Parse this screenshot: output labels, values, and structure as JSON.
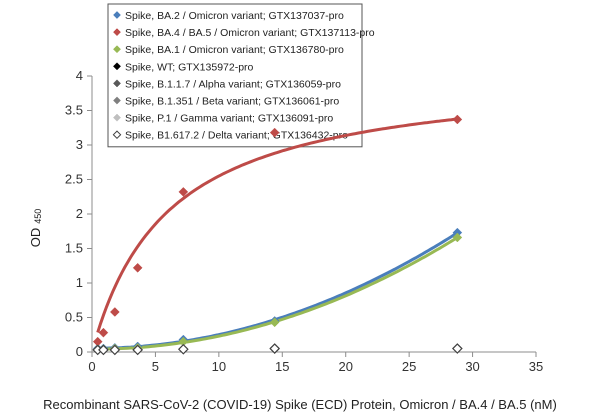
{
  "chart_data": {
    "type": "scatter",
    "title": "",
    "xlabel": "Recombinant SARS-CoV-2 (COVID-19) Spike (ECD) Protein, Omicron / BA.4 / BA.5 (nM)",
    "ylabel": "OD",
    "ylabel_subscript": "450",
    "xlim": [
      0,
      35
    ],
    "ylim": [
      0,
      4
    ],
    "x_ticks": [
      0,
      5,
      10,
      15,
      20,
      25,
      30,
      35
    ],
    "y_ticks": [
      0,
      0.5,
      1,
      1.5,
      2,
      2.5,
      3,
      3.5,
      4
    ],
    "x_tick_labels": [
      "0",
      "5",
      "10",
      "15",
      "20",
      "25",
      "30",
      "35"
    ],
    "y_tick_labels": [
      "0",
      "0.5",
      "1",
      "1.5",
      "2",
      "2.5",
      "3",
      "3.5",
      "4"
    ],
    "grid": false,
    "legend_position": "top",
    "series": [
      {
        "name": "Spike, BA.2 / Omicron variant; GTX137037-pro",
        "color": "#4a7ebb",
        "marker": "diamond-filled",
        "trendline": "curve",
        "x": [
          0.45,
          0.9,
          1.8,
          3.6,
          7.2,
          14.4,
          28.8
        ],
        "y": [
          0.05,
          0.05,
          0.06,
          0.08,
          0.18,
          0.45,
          1.73
        ]
      },
      {
        "name": "Spike, BA.4 / BA.5 / Omicron variant; GTX137113-pro",
        "color": "#be4b48",
        "marker": "diamond-filled",
        "trendline": "saturation",
        "x": [
          0.45,
          0.9,
          1.8,
          3.6,
          7.2,
          14.4,
          28.8
        ],
        "y": [
          0.15,
          0.28,
          0.58,
          1.22,
          2.32,
          3.18,
          3.37
        ]
      },
      {
        "name": "Spike, BA.1 / Omicron variant; GTX136780-pro",
        "color": "#98b954",
        "marker": "diamond-filled",
        "trendline": "curve",
        "x": [
          0.45,
          0.9,
          1.8,
          3.6,
          7.2,
          14.4,
          28.8
        ],
        "y": [
          0.04,
          0.04,
          0.05,
          0.06,
          0.15,
          0.43,
          1.66
        ]
      },
      {
        "name": "Spike, WT; GTX135972-pro",
        "color": "#000000",
        "marker": "diamond-filled",
        "trendline": "none",
        "x": [
          0.45,
          0.9,
          1.8,
          3.6,
          7.2,
          14.4,
          28.8
        ],
        "y": [
          0.03,
          0.03,
          0.03,
          0.03,
          0.04,
          0.05,
          0.05
        ]
      },
      {
        "name": "Spike, B.1.1.7 / Alpha variant; GTX136059-pro",
        "color": "#595959",
        "marker": "diamond-filled",
        "trendline": "none",
        "x": [
          0.45,
          0.9,
          1.8,
          3.6,
          7.2,
          14.4,
          28.8
        ],
        "y": [
          0.03,
          0.03,
          0.03,
          0.03,
          0.04,
          0.04,
          0.05
        ]
      },
      {
        "name": "Spike, B.1.351 / Beta variant; GTX136061-pro",
        "color": "#7f7f7f",
        "marker": "diamond-filled",
        "trendline": "none",
        "x": [
          0.45,
          0.9,
          1.8,
          3.6,
          7.2,
          14.4,
          28.8
        ],
        "y": [
          0.03,
          0.03,
          0.03,
          0.04,
          0.04,
          0.05,
          0.05
        ]
      },
      {
        "name": "Spike, P.1 / Gamma variant; GTX136091-pro",
        "color": "#bfbfbf",
        "marker": "diamond-filled",
        "trendline": "none",
        "x": [
          0.45,
          0.9,
          1.8,
          3.6,
          7.2,
          14.4,
          28.8
        ],
        "y": [
          0.03,
          0.03,
          0.04,
          0.04,
          0.05,
          0.06,
          0.06
        ]
      },
      {
        "name": "Spike, B1.617.2 / Delta variant; GTX136432-pro",
        "color": "#404040",
        "marker": "diamond-open",
        "trendline": "none",
        "x": [
          0.45,
          0.9,
          1.8,
          3.6,
          7.2,
          14.4,
          28.8
        ],
        "y": [
          0.03,
          0.03,
          0.03,
          0.03,
          0.04,
          0.05,
          0.05
        ]
      }
    ]
  }
}
